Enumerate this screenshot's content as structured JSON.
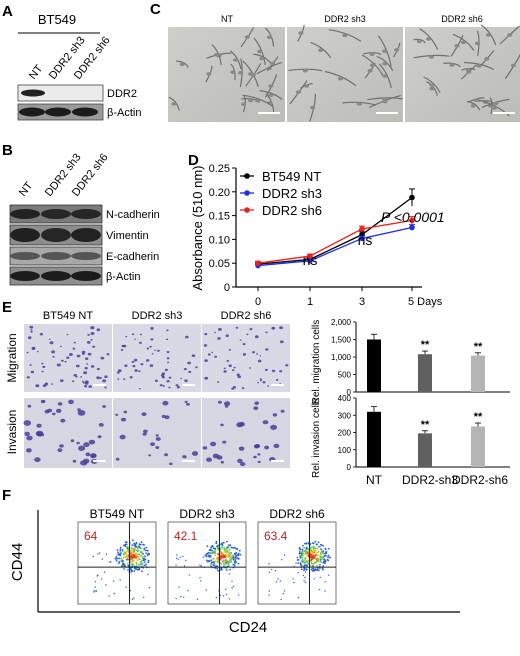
{
  "panel_letters": {
    "a": "A",
    "b": "B",
    "c": "C",
    "d": "D",
    "e": "E",
    "f": "F"
  },
  "panel_a": {
    "cell_line": "BT549",
    "lanes": [
      "NT",
      "DDR2 sh3",
      "DDR2 sh6"
    ],
    "bands": [
      "DDR2",
      "β-Actin"
    ]
  },
  "panel_b": {
    "lanes": [
      "NT",
      "DDR2 sh3",
      "DDR2 sh6"
    ],
    "bands": [
      "N-cadherin",
      "Vimentin",
      "E-cadherin",
      "β-Actin"
    ]
  },
  "panel_c": {
    "labels": [
      "NT",
      "DDR2 sh3",
      "DDR2 sh6"
    ]
  },
  "panel_e": {
    "columns": [
      "BT549 NT",
      "DDR2 sh3",
      "DDR2 sh6"
    ],
    "rows": [
      "Migration",
      "Invasion"
    ]
  },
  "panel_f": {
    "titles": [
      "BT549 NT",
      "DDR2 sh3",
      "DDR2 sh6"
    ],
    "percents": [
      "64",
      "42.1",
      "63.4"
    ],
    "xlabel": "CD24",
    "ylabel": "CD44",
    "percent_color": "#c0211f"
  },
  "chart_data": [
    {
      "type": "line",
      "x": [
        0,
        1,
        3,
        5
      ],
      "xtick_labels": [
        "0",
        "1",
        "3",
        "5 Days"
      ],
      "ylabel": "Absorbance (510 nm)",
      "ylim": [
        0,
        0.25
      ],
      "yticks": [
        "0",
        "0.05",
        "0.10",
        "0.15",
        "0.20",
        "0.25"
      ],
      "series": [
        {
          "name": "BT549 NT",
          "color": "#000000",
          "values": [
            0.048,
            0.058,
            0.11,
            0.188
          ],
          "err": [
            0.004,
            0.004,
            0.006,
            0.018
          ]
        },
        {
          "name": "DDR2 sh3",
          "color": "#1f2ee8",
          "values": [
            0.045,
            0.055,
            0.102,
            0.125
          ],
          "err": [
            0.004,
            0.004,
            0.005,
            0.006
          ]
        },
        {
          "name": "DDR2 sh6",
          "color": "#e8221f",
          "values": [
            0.05,
            0.065,
            0.122,
            0.14
          ],
          "err": [
            0.004,
            0.004,
            0.006,
            0.008
          ]
        }
      ],
      "annotations": [
        "ns",
        "ns",
        "P <0.0001"
      ],
      "legend": "top-left"
    },
    {
      "type": "bar",
      "categories": [
        "NT",
        "DDR2-sh3",
        "DDR2-sh6"
      ],
      "values": [
        1500,
        1080,
        1040
      ],
      "err": [
        150,
        90,
        80
      ],
      "colors": [
        "#000000",
        "#606060",
        "#b4b4b4"
      ],
      "ylabel": "Rel. migration cells",
      "ylim": [
        0,
        2000
      ],
      "yticks": [
        "0",
        "500",
        "1,000",
        "1,500",
        "2,000"
      ],
      "significance": [
        "",
        "**",
        "**"
      ]
    },
    {
      "type": "bar",
      "categories": [
        "NT",
        "DDR2-sh3",
        "DDR2-sh6"
      ],
      "values": [
        320,
        195,
        235
      ],
      "err": [
        30,
        15,
        20
      ],
      "colors": [
        "#000000",
        "#606060",
        "#b4b4b4"
      ],
      "ylabel": "Rel. invasion cells",
      "ylim": [
        0,
        400
      ],
      "yticks": [
        "0",
        "100",
        "200",
        "300",
        "400"
      ],
      "significance": [
        "",
        "**",
        "**"
      ]
    }
  ]
}
